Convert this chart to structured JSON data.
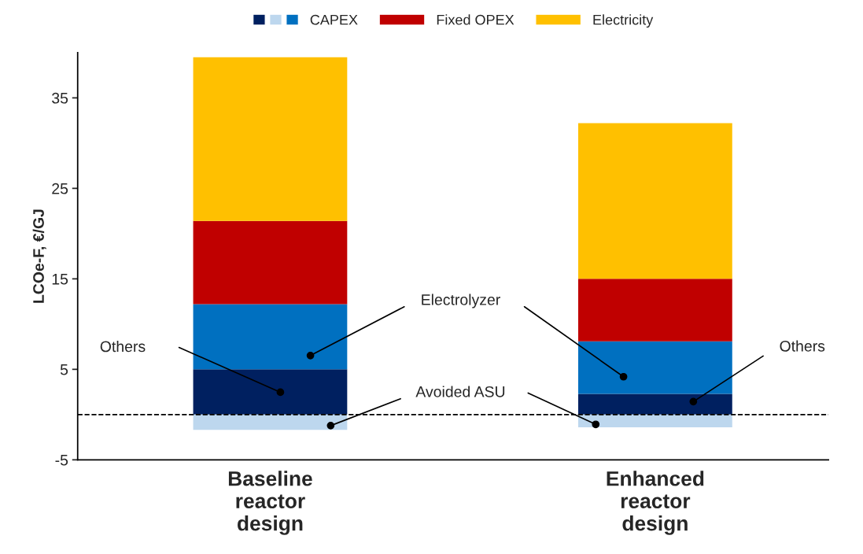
{
  "chart_data": {
    "type": "bar",
    "stacked": true,
    "ylabel": "LCOe-F, €/GJ",
    "categories": [
      "Baseline reactor design",
      "Enhanced reactor design"
    ],
    "series": [
      {
        "color": "#002060",
        "values": [
          5.0,
          2.3
        ]
      },
      {
        "color": "#bdd7ee",
        "values": [
          -1.7,
          -1.4
        ]
      },
      {
        "name": "CAPEX",
        "color": "#0070c0",
        "values": [
          7.2,
          5.8
        ]
      },
      {
        "name": "Fixed OPEX",
        "color": "#c00000",
        "values": [
          9.2,
          6.9
        ]
      },
      {
        "name": "Electricity",
        "color": "#ffc000",
        "values": [
          18.1,
          17.2
        ]
      }
    ],
    "ylim": [
      -5,
      40
    ],
    "yticks": [
      -5,
      5,
      15,
      25,
      35
    ],
    "ref_lines": [
      {
        "axis": "y",
        "value": 0,
        "line_style": "dashed",
        "color": "#000000"
      }
    ],
    "annotations": [
      "Others",
      "Electrolyzer",
      "Avoided ASU",
      "Others"
    ],
    "legend": "top",
    "grid": false
  }
}
